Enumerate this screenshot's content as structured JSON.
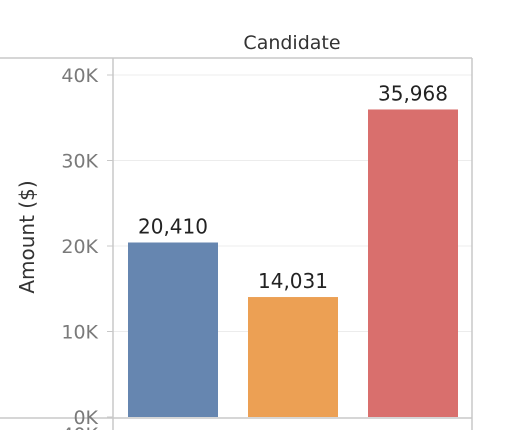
{
  "chart_data": {
    "type": "bar",
    "title": "",
    "header_label": "Candidate",
    "ylabel": "Amount ($)",
    "xlabel": "",
    "categories": [
      "",
      "",
      ""
    ],
    "values": [
      20410,
      14031,
      35968
    ],
    "data_labels": [
      "20,410",
      "14,031",
      "35,968"
    ],
    "colors": [
      "#6686b0",
      "#eca054",
      "#d96f6d"
    ],
    "ylim": [
      0,
      40000
    ],
    "yticks": [
      0,
      10000,
      20000,
      30000,
      40000
    ],
    "ytick_labels": [
      "0K",
      "10K",
      "20K",
      "30K",
      "40K"
    ],
    "cut_tick_label": "40K",
    "grid": true,
    "legend": "none"
  }
}
